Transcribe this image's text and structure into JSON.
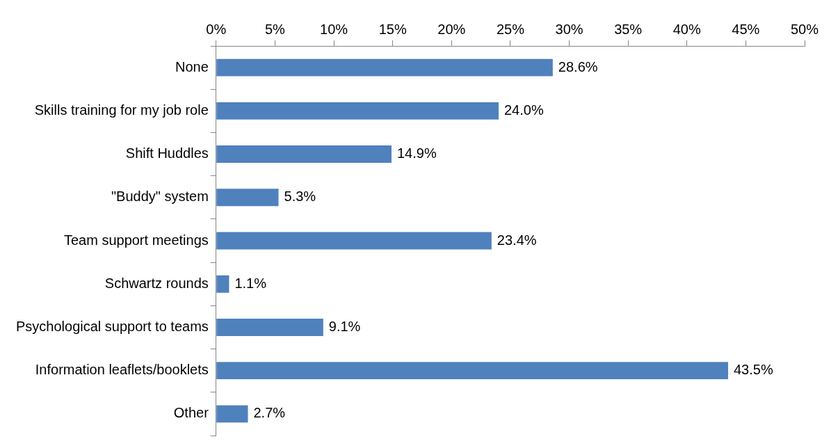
{
  "chart_data": {
    "type": "bar",
    "orientation": "horizontal",
    "categories": [
      "None",
      "Skills training for my job role",
      "Shift Huddles",
      "\"Buddy\" system",
      "Team support meetings",
      "Schwartz rounds",
      "Psychological support to teams",
      "Information leaflets/booklets",
      "Other"
    ],
    "values": [
      28.6,
      24.0,
      14.9,
      5.3,
      23.4,
      1.1,
      9.1,
      43.5,
      2.7
    ],
    "value_labels": [
      "28.6%",
      "24.0%",
      "14.9%",
      "5.3%",
      "23.4%",
      "1.1%",
      "9.1%",
      "43.5%",
      "2.7%"
    ],
    "color": "#4f81bd",
    "xlim": [
      0,
      50
    ],
    "xticks": [
      {
        "value": 0,
        "label": "0%"
      },
      {
        "value": 5,
        "label": "5%"
      },
      {
        "value": 10,
        "label": "10%"
      },
      {
        "value": 15,
        "label": "15%"
      },
      {
        "value": 20,
        "label": "20%"
      },
      {
        "value": 25,
        "label": "25%"
      },
      {
        "value": 30,
        "label": "30%"
      },
      {
        "value": 35,
        "label": "35%"
      },
      {
        "value": 40,
        "label": "40%"
      },
      {
        "value": 45,
        "label": "45%"
      },
      {
        "value": 50,
        "label": "50%"
      }
    ],
    "grid": false,
    "legend": false
  }
}
